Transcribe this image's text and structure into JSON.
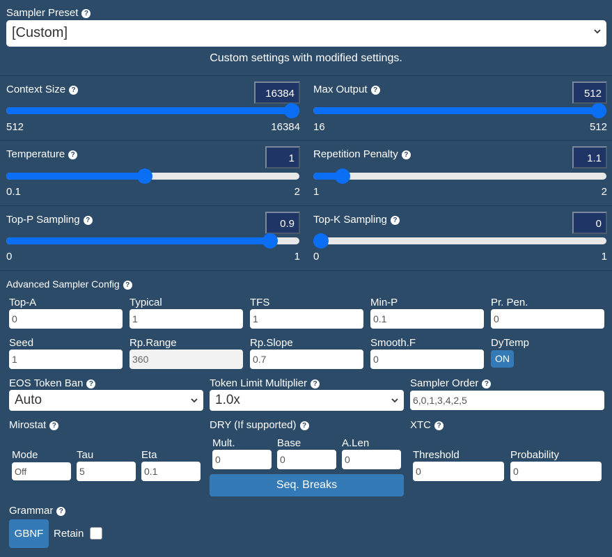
{
  "preset": {
    "label": "Sampler Preset",
    "selected": "[Custom]",
    "description": "Custom settings with modified settings."
  },
  "sliders": {
    "context_size": {
      "label": "Context Size",
      "value": "16384",
      "min": "512",
      "max": "16384",
      "level": 1.0
    },
    "max_output": {
      "label": "Max Output",
      "value": "512",
      "min": "16",
      "max": "512",
      "level": 1.0
    },
    "temperature": {
      "label": "Temperature",
      "value": "1",
      "min": "0.1",
      "max": "2",
      "level": 0.4737
    },
    "repetition_penalty": {
      "label": "Repetition Penalty",
      "value": "1.1",
      "min": "1",
      "max": "2",
      "level": 0.1
    },
    "top_p": {
      "label": "Top-P Sampling",
      "value": "0.9",
      "min": "0",
      "max": "1",
      "level": 0.9
    },
    "top_k": {
      "label": "Top-K Sampling",
      "value": "0",
      "min": "0",
      "max": "1",
      "level": 0.0
    }
  },
  "advanced": {
    "title": "Advanced Sampler Config",
    "top_a": {
      "label": "Top-A",
      "value": "0"
    },
    "typical": {
      "label": "Typical",
      "value": "1"
    },
    "tfs": {
      "label": "TFS",
      "value": "1"
    },
    "min_p": {
      "label": "Min-P",
      "value": "0.1"
    },
    "pr_pen": {
      "label": "Pr. Pen.",
      "value": "0"
    },
    "seed": {
      "label": "Seed",
      "value": "1"
    },
    "rp_range": {
      "label": "Rp.Range",
      "value": "360"
    },
    "rp_slope": {
      "label": "Rp.Slope",
      "value": "0.7"
    },
    "smooth_f": {
      "label": "Smooth.F",
      "value": "0"
    },
    "dytemp": {
      "label": "DyTemp",
      "button": "ON"
    },
    "eos_ban": {
      "label": "EOS Token Ban",
      "value": "Auto"
    },
    "token_limit": {
      "label": "Token Limit Multiplier",
      "value": "1.0x"
    },
    "sampler_order": {
      "label": "Sampler Order",
      "value": "6,0,1,3,4,2,5"
    },
    "mirostat": {
      "label": "Mirostat",
      "mode": {
        "label": "Mode",
        "value": "Off"
      },
      "tau": {
        "label": "Tau",
        "value": "5"
      },
      "eta": {
        "label": "Eta",
        "value": "0.1"
      }
    },
    "dry": {
      "label": "DRY (If supported)",
      "mult": {
        "label": "Mult.",
        "value": "0"
      },
      "base": {
        "label": "Base",
        "value": "0"
      },
      "alen": {
        "label": "A.Len",
        "value": "0"
      },
      "seq_breaks": "Seq. Breaks"
    },
    "xtc": {
      "label": "XTC",
      "threshold": {
        "label": "Threshold",
        "value": "0"
      },
      "probability": {
        "label": "Probability",
        "value": "0"
      }
    },
    "grammar": {
      "label": "Grammar",
      "button": "GBNF",
      "retain": "Retain"
    }
  },
  "icons": {
    "help": "question-circle-icon",
    "dropdown": "chevron-down-icon"
  },
  "colors": {
    "background": "#2c4b68",
    "accent": "#0a6ff4",
    "button": "#337ab7",
    "number_box": "#1f3566"
  }
}
